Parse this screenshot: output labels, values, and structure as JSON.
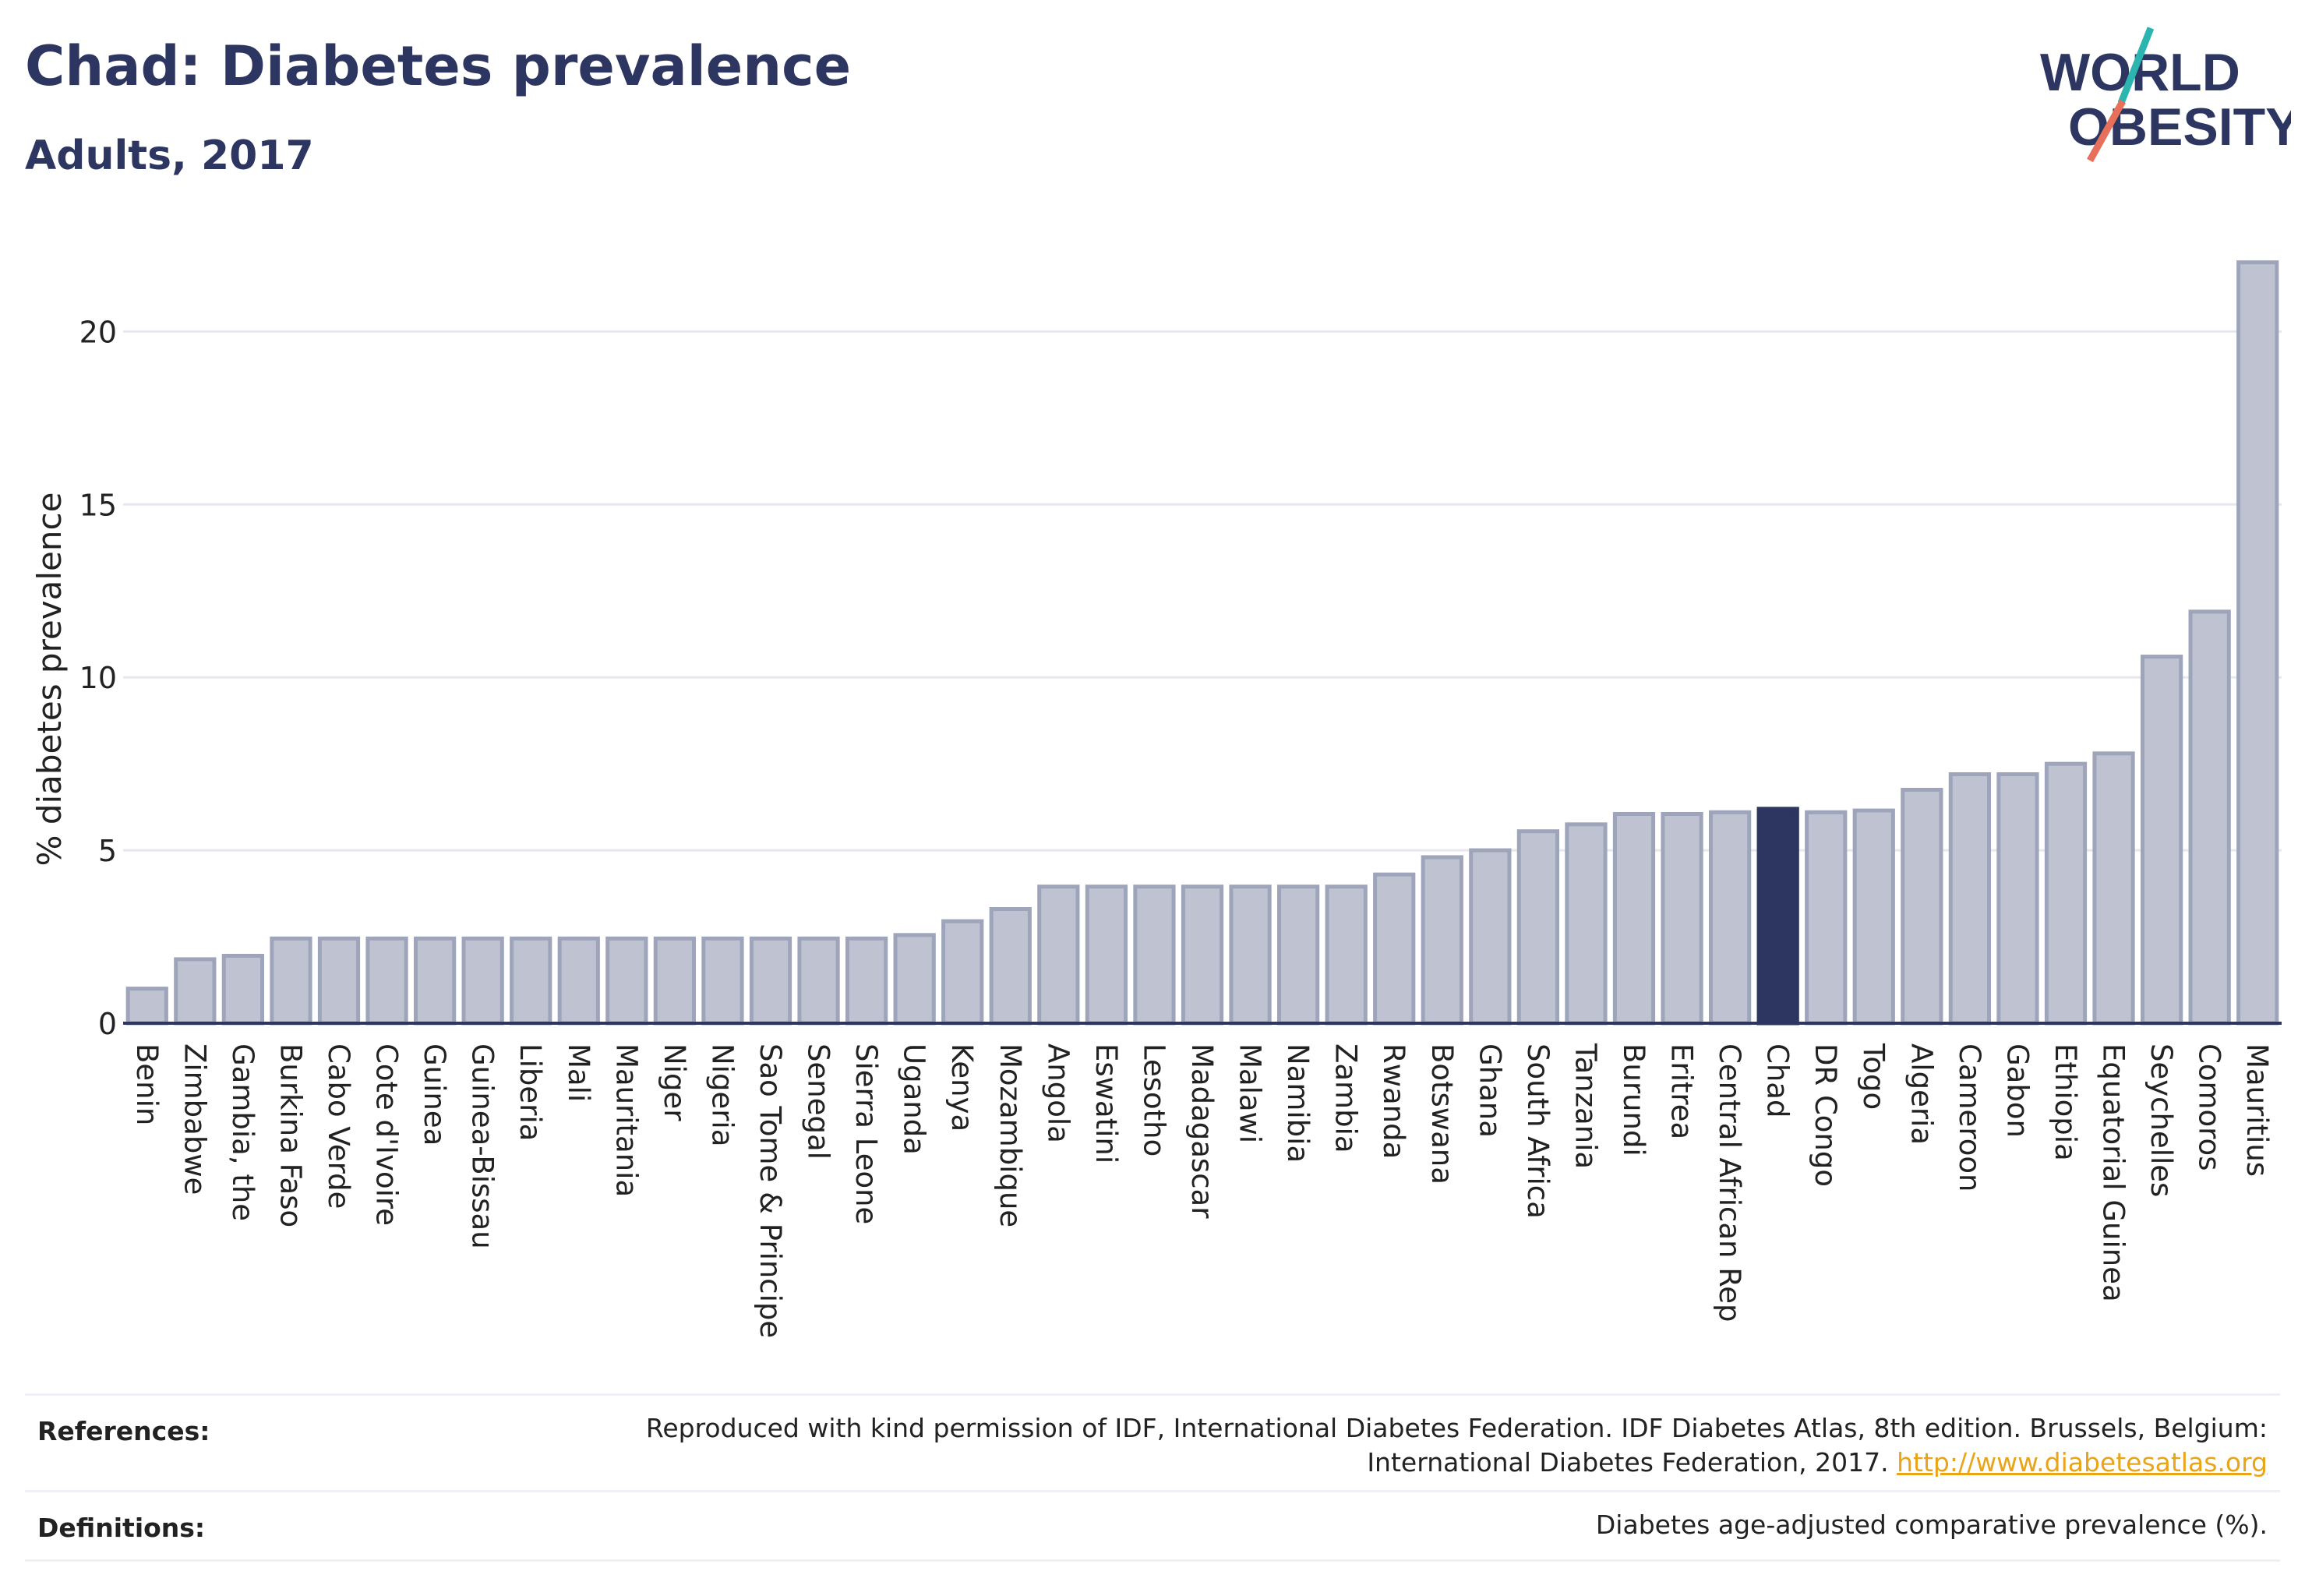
{
  "header": {
    "title": "Chad: Diabetes prevalence",
    "subtitle": "Adults, 2017"
  },
  "logo": {
    "line1": "WORLD",
    "line2": "OBESITY",
    "text_color": "#2d3561",
    "slash_top_color": "#2bb5b0",
    "slash_bottom_color": "#e8705a"
  },
  "colors": {
    "bar_fill": "#bfc3d1",
    "bar_stroke": "#9ea4ba",
    "highlight": "#2d3561",
    "grid": "#e6e8ee",
    "axis": "#2d3561"
  },
  "chart_data": {
    "type": "bar",
    "ylabel": "% diabetes prevalence",
    "ylim": [
      0,
      22.6
    ],
    "yticks": [
      0,
      5,
      10,
      15,
      20
    ],
    "grid": true,
    "highlight": "Chad",
    "categories": [
      "Benin",
      "Zimbabwe",
      "Gambia, the",
      "Burkina Faso",
      "Cabo Verde",
      "Cote d'Ivoire",
      "Guinea",
      "Guinea-Bissau",
      "Liberia",
      "Mali",
      "Mauritania",
      "Niger",
      "Nigeria",
      "Sao Tome & Principe",
      "Senegal",
      "Sierra Leone",
      "Uganda",
      "Kenya",
      "Mozambique",
      "Angola",
      "Eswatini",
      "Lesotho",
      "Madagascar",
      "Malawi",
      "Namibia",
      "Zambia",
      "Rwanda",
      "Botswana",
      "Ghana",
      "South Africa",
      "Tanzania",
      "Burundi",
      "Eritrea",
      "Central African Rep",
      "Chad",
      "DR Congo",
      "Togo",
      "Algeria",
      "Cameroon",
      "Gabon",
      "Ethiopia",
      "Equatorial Guinea",
      "Seychelles",
      "Comoros",
      "Mauritius"
    ],
    "values": [
      1.0,
      1.85,
      1.95,
      2.45,
      2.45,
      2.45,
      2.45,
      2.45,
      2.45,
      2.45,
      2.45,
      2.45,
      2.45,
      2.45,
      2.45,
      2.45,
      2.55,
      2.95,
      3.3,
      3.95,
      3.95,
      3.95,
      3.95,
      3.95,
      3.95,
      3.95,
      4.3,
      4.8,
      5.0,
      5.55,
      5.75,
      6.05,
      6.05,
      6.1,
      6.2,
      6.1,
      6.15,
      6.75,
      7.2,
      7.2,
      7.5,
      7.8,
      10.6,
      11.9,
      22.0
    ]
  },
  "references": {
    "label": "References:",
    "line1": "Reproduced with kind permission of IDF, International Diabetes Federation. IDF Diabetes Atlas, 8th edition. Brussels, Belgium:",
    "line2": "International Diabetes Federation, 2017.",
    "link": "http://www.diabetesatlas.org"
  },
  "definitions": {
    "label": "Definitions:",
    "text": "Diabetes age-adjusted comparative prevalence (%)."
  }
}
